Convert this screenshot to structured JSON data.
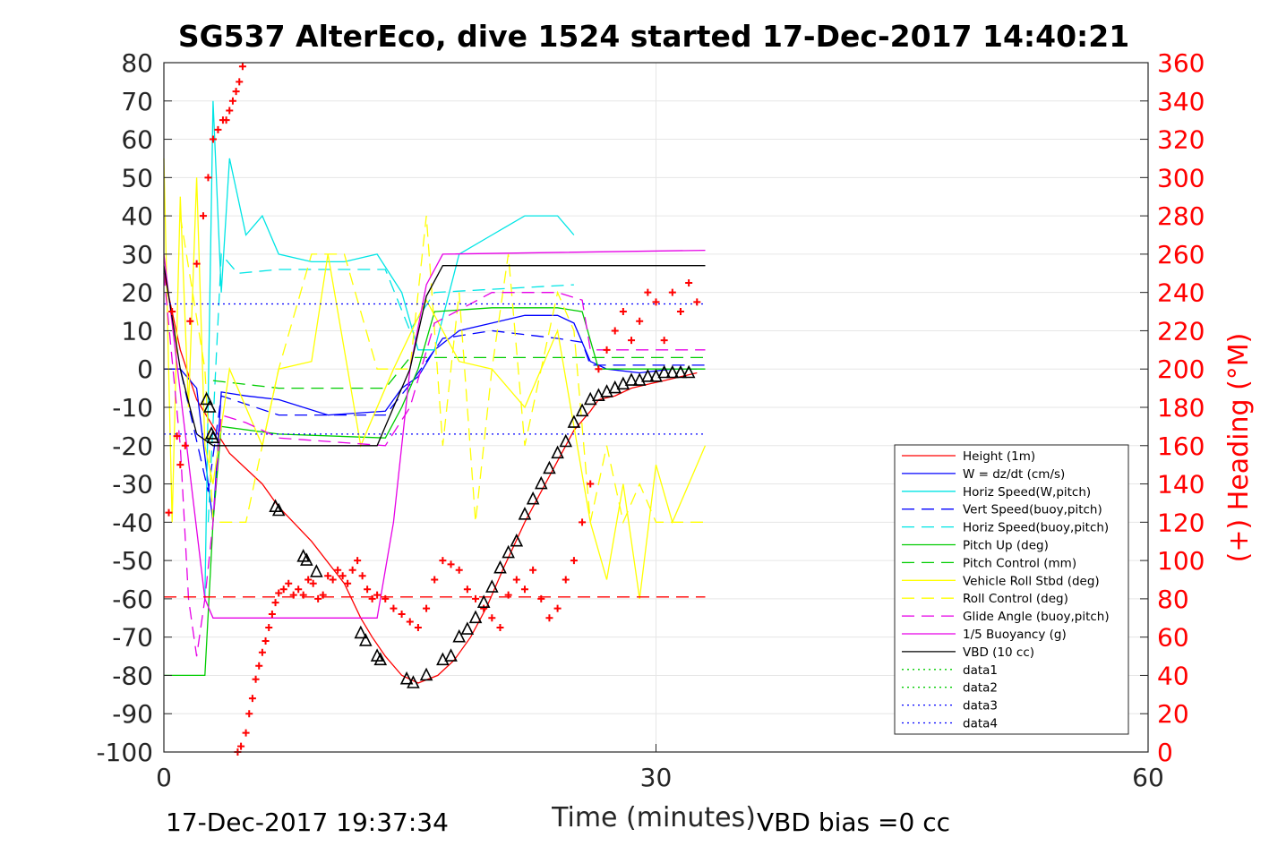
{
  "chart_data": {
    "type": "line",
    "title": "SG537 AlterEco, dive 1524 started 17-Dec-2017 14:40:21",
    "xlabel": "Time (minutes)",
    "ylabel": "",
    "y2label": "(+) Heading (°M)",
    "xlim": [
      0,
      60
    ],
    "ylim": [
      -100,
      80
    ],
    "y2lim": [
      0,
      360
    ],
    "x_ticks": [
      "0",
      "30",
      "60"
    ],
    "y_ticks": [
      "80",
      "70",
      "60",
      "50",
      "40",
      "30",
      "20",
      "10",
      "0",
      "-10",
      "-20",
      "-30",
      "-40",
      "-50",
      "-60",
      "-70",
      "-80",
      "-90",
      "-100"
    ],
    "y2_ticks": [
      "360",
      "340",
      "320",
      "300",
      "280",
      "260",
      "240",
      "220",
      "200",
      "180",
      "160",
      "140",
      "120",
      "100",
      "80",
      "60",
      "40",
      "20",
      "0"
    ],
    "grid": true,
    "legend_position": "bottom-right",
    "footer_left": "17-Dec-2017 19:37:34",
    "footer_right": "VBD bias =0 cc",
    "colors": {
      "red": "#ff0000",
      "blue": "#0000ff",
      "cyan": "#00e5e5",
      "green": "#00cc00",
      "yellow": "#ffff00",
      "magenta": "#e600e6",
      "black": "#000000"
    },
    "series": [
      {
        "name": "Height (1m)",
        "color": "#ff0000",
        "dash": "solid",
        "x": [
          0,
          1,
          2,
          3,
          4,
          6,
          7,
          9,
          11,
          12,
          12.7,
          13.5,
          14.5,
          15.5,
          16.7,
          17.7,
          18.7,
          19.7,
          20.7,
          22,
          23,
          24,
          25,
          26,
          26.5,
          27.5,
          28.5,
          29.5,
          30.5,
          31.5,
          32.5
        ],
        "y": [
          25,
          5,
          -8,
          -15,
          -22,
          -30,
          -36,
          -45,
          -56,
          -65,
          -70,
          -75,
          -80,
          -82,
          -80,
          -76,
          -70,
          -62,
          -52,
          -40,
          -32,
          -24,
          -16,
          -11,
          -8,
          -7,
          -5,
          -4,
          -3,
          -2,
          -1
        ]
      },
      {
        "name": "W = dz/dt (cm/s)",
        "color": "#0000ff",
        "dash": "solid",
        "x": [
          0,
          1,
          2,
          2.7,
          3,
          3.5,
          5,
          7,
          10,
          13.5,
          14.5,
          15.5,
          16.5,
          18,
          20,
          22,
          24,
          25,
          26,
          27,
          29,
          31,
          32.5
        ],
        "y": [
          0,
          0,
          -5,
          -30,
          -40,
          -6,
          -7,
          -8,
          -12,
          -11,
          -5,
          -2,
          5,
          10,
          12,
          14,
          14,
          12,
          2,
          0,
          -1,
          0,
          0
        ]
      },
      {
        "name": "Horiz Speed(W,pitch)",
        "color": "#00e5e5",
        "dash": "solid",
        "x": [
          2.5,
          3,
          3.5,
          4,
          5,
          6,
          7,
          9,
          11,
          13,
          14.5,
          15.5,
          16.5,
          18,
          20,
          22,
          24,
          25
        ],
        "y": [
          -60,
          70,
          20,
          55,
          35,
          40,
          30,
          28,
          28,
          30,
          20,
          5,
          5,
          30,
          35,
          40,
          40,
          35
        ]
      },
      {
        "name": "Vert Speed(buoy,pitch)",
        "color": "#0000ff",
        "dash": "dashed",
        "x": [
          0,
          1,
          2.7,
          3.5,
          7,
          13.5,
          15,
          17,
          20,
          24,
          25.5,
          26,
          33
        ],
        "y": [
          0,
          0,
          -32,
          -7,
          -12,
          -12,
          -4,
          8,
          10,
          8,
          7,
          1,
          1
        ]
      },
      {
        "name": "Horiz Speed(buoy,pitch)",
        "color": "#00e5e5",
        "dash": "dashed",
        "x": [
          2.7,
          3.5,
          4.5,
          7,
          13.5,
          15,
          16.5,
          25
        ],
        "y": [
          -40,
          30,
          25,
          26,
          26,
          10,
          20,
          22
        ]
      },
      {
        "name": "Pitch Up (deg)",
        "color": "#00cc00",
        "dash": "solid",
        "x": [
          0,
          2.5,
          3,
          3.5,
          7,
          13.5,
          14.5,
          15.5,
          16.5,
          20,
          24,
          25.5,
          26.5,
          33
        ],
        "y": [
          -80,
          -80,
          -40,
          -15,
          -17,
          -18,
          -10,
          0,
          15,
          16,
          16,
          15,
          0,
          0
        ]
      },
      {
        "name": "Pitch Control (mm)",
        "color": "#00cc00",
        "dash": "dashed",
        "x": [
          3,
          7,
          13.5,
          15,
          16,
          26,
          33
        ],
        "y": [
          -3,
          -5,
          -5,
          3,
          3,
          3,
          3
        ]
      },
      {
        "name": "Vehicle Roll Stbd (deg)",
        "color": "#ffff00",
        "dash": "solid",
        "x": [
          0,
          0.5,
          1,
          1.5,
          2,
          2.5,
          3,
          4,
          6,
          7,
          9,
          10,
          12,
          14,
          16,
          18,
          20,
          22,
          24,
          26,
          27,
          28,
          29,
          30,
          31,
          32,
          33
        ],
        "y": [
          55,
          -40,
          45,
          -10,
          50,
          -20,
          -30,
          0,
          -20,
          0,
          2,
          30,
          -20,
          0,
          18,
          2,
          0,
          -10,
          10,
          -40,
          -55,
          -30,
          -60,
          -25,
          -40,
          -30,
          -20
        ]
      },
      {
        "name": "Roll Control (deg)",
        "color": "#ffff00",
        "dash": "dashed",
        "x": [
          1,
          2.5,
          3,
          5,
          7,
          9,
          11,
          13,
          15,
          16,
          17,
          18,
          19,
          20,
          21,
          22,
          23,
          24,
          25,
          26,
          27,
          28,
          29,
          30,
          31,
          33
        ],
        "y": [
          40,
          0,
          -40,
          -40,
          0,
          30,
          30,
          0,
          0,
          40,
          -20,
          20,
          -40,
          0,
          30,
          -20,
          0,
          20,
          10,
          -40,
          -20,
          -40,
          -30,
          -40,
          -40,
          -40
        ]
      },
      {
        "name": "Glide Angle (buoy,pitch)",
        "color": "#e600e6",
        "dash": "dashed",
        "x": [
          0,
          1,
          1.5,
          2,
          2.5,
          3,
          3.5,
          5,
          7,
          13.5,
          15,
          16.5,
          20,
          24,
          25.5,
          26,
          33
        ],
        "y": [
          25,
          -20,
          -60,
          -75,
          -60,
          -40,
          -12,
          -14,
          -18,
          -20,
          -10,
          12,
          20,
          20,
          18,
          5,
          5
        ]
      },
      {
        "name": "1/5 Buoyancy (g)",
        "color": "#e600e6",
        "dash": "solid",
        "x": [
          0,
          2.5,
          3,
          7,
          13,
          14,
          15,
          16,
          17,
          33
        ],
        "y": [
          30,
          -60,
          -65,
          -65,
          -65,
          -40,
          0,
          22,
          30,
          31
        ]
      },
      {
        "name": "VBD (10 cc)",
        "color": "#000000",
        "dash": "solid",
        "x": [
          0,
          1,
          2,
          3,
          4,
          7,
          13,
          14,
          15,
          16,
          17,
          33
        ],
        "y": [
          27,
          0,
          -17,
          -20,
          -20,
          -20,
          -20,
          -10,
          0,
          19,
          27,
          27
        ]
      },
      {
        "name": "data1",
        "color": "#00cc00",
        "dash": "dotted",
        "x": [],
        "y": []
      },
      {
        "name": "data2",
        "color": "#00cc00",
        "dash": "dotted",
        "x": [],
        "y": []
      },
      {
        "name": "data3",
        "color": "#0000ff",
        "dash": "dotted",
        "x": [
          0,
          33
        ],
        "y": [
          17,
          17
        ]
      },
      {
        "name": "data4",
        "color": "#0000ff",
        "dash": "dotted",
        "x": [
          0,
          33
        ],
        "y": [
          -17,
          -17
        ]
      }
    ],
    "reference_lines": [
      {
        "name": "heading-reference",
        "color": "#ff0000",
        "dash": "dashed",
        "x": [
          0,
          33
        ],
        "y": [
          -59.5,
          -59.5
        ]
      }
    ],
    "heading_points": {
      "name": "(+) Heading (°M)",
      "axis": "right",
      "color": "#ff0000",
      "marker": "plus",
      "x": [
        0.3,
        0.5,
        0.8,
        1,
        1.3,
        1.6,
        2,
        2.4,
        2.7,
        3,
        3.3,
        3.6,
        3.8,
        4,
        4.2,
        4.4,
        4.6,
        4.8,
        4.5,
        4.7,
        5,
        5.2,
        5.4,
        5.6,
        5.8,
        6,
        6.2,
        6.4,
        6.6,
        6.8,
        7,
        7.3,
        7.6,
        7.9,
        8.2,
        8.5,
        8.8,
        9.1,
        9.4,
        9.7,
        10,
        10.3,
        10.6,
        10.9,
        11.2,
        11.5,
        11.8,
        12.1,
        12.4,
        12.7,
        13,
        13.5,
        14,
        14.5,
        15,
        15.5,
        16,
        16.5,
        17,
        17.5,
        18,
        18.5,
        19,
        19.5,
        20,
        20.5,
        21,
        21.5,
        22,
        22.5,
        23,
        23.5,
        24,
        24.5,
        25,
        25.5,
        26,
        26.5,
        27,
        27.5,
        28,
        28.5,
        29,
        29.5,
        30,
        30.5,
        31,
        31.5,
        32,
        32.5
      ],
      "y": [
        125,
        230,
        165,
        150,
        160,
        225,
        255,
        280,
        300,
        320,
        325,
        330,
        330,
        335,
        340,
        345,
        350,
        358,
        0,
        3,
        10,
        20,
        28,
        38,
        45,
        52,
        58,
        65,
        72,
        78,
        83,
        85,
        88,
        82,
        85,
        82,
        90,
        88,
        80,
        82,
        92,
        90,
        95,
        92,
        88,
        95,
        100,
        92,
        85,
        80,
        82,
        80,
        75,
        72,
        68,
        65,
        75,
        90,
        100,
        98,
        95,
        85,
        80,
        75,
        70,
        65,
        82,
        90,
        85,
        95,
        80,
        70,
        75,
        90,
        100,
        120,
        140,
        200,
        210,
        220,
        230,
        215,
        225,
        240,
        235,
        215,
        240,
        230,
        245,
        235
      ]
    },
    "vbd_markers": {
      "name": "vbd-markers",
      "color": "#000000",
      "marker": "triangle",
      "x": [
        2.6,
        2.8,
        2.9,
        3,
        6.8,
        7,
        8.5,
        8.7,
        9.3,
        12,
        12.3,
        13,
        13.2,
        14.8,
        15.2,
        16,
        17,
        17.5,
        18,
        18.5,
        19,
        19.5,
        20,
        20.5,
        21,
        21.5,
        22,
        22.5,
        23,
        23.5,
        24,
        24.5,
        25,
        25.5,
        26,
        26.5,
        27,
        27.5,
        28,
        28.5,
        29,
        29.5,
        30,
        30.5,
        31,
        31.5,
        32
      ],
      "y": [
        -8,
        -10,
        -17,
        -18,
        -36,
        -37,
        -49,
        -50,
        -53,
        -69,
        -71,
        -75,
        -76,
        -81,
        -82,
        -80,
        -76,
        -75,
        -70,
        -68,
        -65,
        -61,
        -57,
        -52,
        -48,
        -45,
        -38,
        -34,
        -30,
        -26,
        -22,
        -19,
        -14,
        -11,
        -8,
        -7,
        -6,
        -5,
        -4,
        -3,
        -3,
        -2,
        -2,
        -1,
        -1,
        -1,
        -1
      ]
    }
  }
}
